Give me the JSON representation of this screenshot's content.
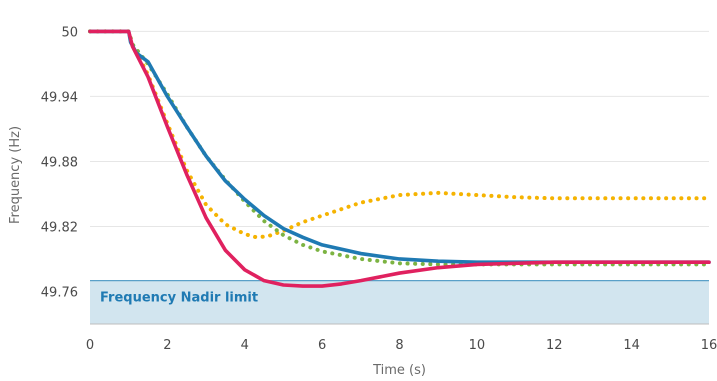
{
  "chart_data": {
    "type": "line",
    "xlabel": "Time (s)",
    "ylabel": "Frequency (Hz)",
    "xlim": [
      0,
      16
    ],
    "ylim": [
      49.73,
      50.005
    ],
    "xticks": [
      0,
      2,
      4,
      6,
      8,
      10,
      12,
      14,
      16
    ],
    "xtick_labels": [
      "0",
      "2",
      "4",
      "6",
      "8",
      "10",
      "12",
      "14",
      "16"
    ],
    "yticks": [
      50,
      49.94,
      49.88,
      49.82,
      49.76
    ],
    "ytick_labels": [
      "50",
      "49.94",
      "49.88",
      "49.82",
      "49.76"
    ],
    "grid": "horizontal",
    "shaded_region": {
      "label": "Frequency Nadir limit",
      "y_from": 49.73,
      "y_to": 49.77,
      "fill_color": "#d2e5ef",
      "line_color": "#5aa0c8",
      "label_color": "#1f7ab3"
    },
    "series": [
      {
        "color": "#1f7ab3",
        "style": "solid",
        "x": [
          0,
          1,
          1.05,
          1.2,
          1.5,
          2,
          2.5,
          3,
          3.5,
          4,
          4.5,
          5,
          5.5,
          6,
          7,
          8,
          9,
          10,
          11,
          12,
          14,
          16
        ],
        "y": [
          50,
          50,
          49.99,
          49.98,
          49.972,
          49.94,
          49.912,
          49.885,
          49.862,
          49.845,
          49.83,
          49.818,
          49.81,
          49.803,
          49.795,
          49.79,
          49.788,
          49.787,
          49.787,
          49.787,
          49.787,
          49.787
        ]
      },
      {
        "color": "#7cb342",
        "style": "dotted",
        "x": [
          0,
          1,
          1.1,
          1.5,
          2,
          2.5,
          3,
          3.5,
          4,
          4.5,
          5,
          5.5,
          6,
          7,
          8,
          9,
          10,
          12,
          14,
          16
        ],
        "y": [
          50,
          50,
          49.988,
          49.97,
          49.942,
          49.912,
          49.885,
          49.863,
          49.843,
          49.825,
          49.812,
          49.803,
          49.797,
          49.79,
          49.786,
          49.785,
          49.785,
          49.785,
          49.785,
          49.785
        ]
      },
      {
        "color": "#f5b301",
        "style": "dotted",
        "x": [
          0,
          1,
          1.1,
          1.5,
          2,
          2.5,
          3,
          3.5,
          4,
          4.3,
          4.6,
          5,
          5.5,
          6,
          7,
          8,
          9,
          10,
          11,
          12,
          14,
          16
        ],
        "y": [
          50,
          50,
          49.988,
          49.96,
          49.915,
          49.872,
          49.84,
          49.822,
          49.813,
          49.81,
          49.811,
          49.816,
          49.824,
          49.83,
          49.842,
          49.849,
          49.851,
          49.849,
          49.847,
          49.846,
          49.846,
          49.846
        ]
      },
      {
        "color": "#e0215f",
        "style": "solid",
        "x": [
          0,
          1,
          1.1,
          1.5,
          2,
          2.5,
          3,
          3.5,
          4,
          4.5,
          5,
          5.5,
          6,
          6.5,
          7,
          8,
          9,
          10,
          11,
          12,
          14,
          16
        ],
        "y": [
          50,
          50,
          49.986,
          49.958,
          49.912,
          49.868,
          49.828,
          49.798,
          49.78,
          49.77,
          49.766,
          49.765,
          49.765,
          49.767,
          49.77,
          49.777,
          49.782,
          49.785,
          49.786,
          49.787,
          49.787,
          49.787
        ]
      }
    ]
  }
}
